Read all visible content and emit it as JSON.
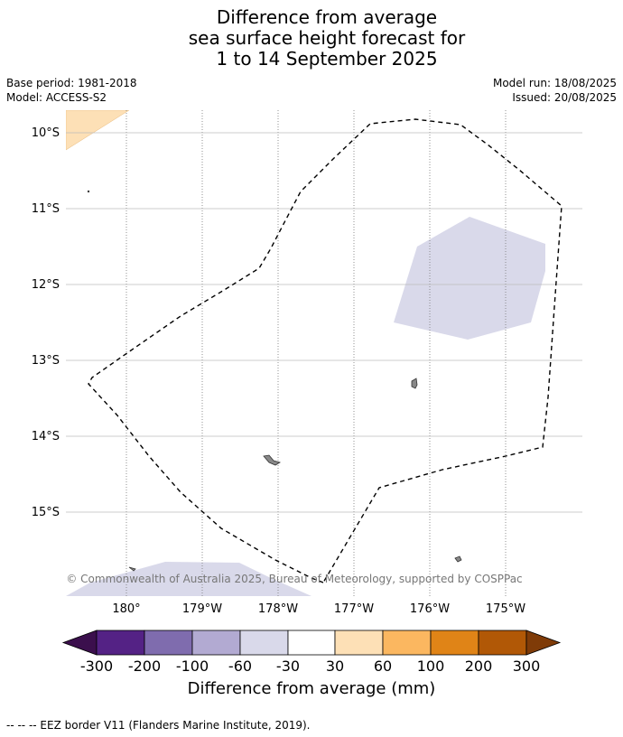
{
  "title": {
    "line1": "Difference from average",
    "line2": "sea surface height forecast for",
    "line3": "1 to 14 September 2025"
  },
  "info_left": {
    "base_period": "Base period: 1981-2018",
    "model": "Model: ACCESS-S2"
  },
  "info_right": {
    "model_run": "Model run: 18/08/2025",
    "issued": "Issued: 20/08/2025"
  },
  "map": {
    "lat_labels": [
      "10°S",
      "11°S",
      "12°S",
      "13°S",
      "14°S",
      "15°S"
    ],
    "lon_labels": [
      "180°",
      "179°W",
      "178°W",
      "177°W",
      "176°W",
      "175°W"
    ],
    "copyright": "© Commonwealth of Australia 2025, Bureau of Meteorology, supported by COSPPac",
    "colors": {
      "land": "#888888",
      "gridline": "#bbbbbb",
      "eez_border": "#000000"
    }
  },
  "colorbar": {
    "title": "Difference from average (mm)",
    "ticks": [
      "-300",
      "-200",
      "-100",
      "-60",
      "-30",
      "30",
      "60",
      "100",
      "200",
      "300"
    ],
    "colors": {
      "below": "#3b0f4d",
      "b1": "#542285",
      "b2": "#7f6cae",
      "b3": "#b2aad2",
      "b4": "#d9d9ea",
      "b5": "#ffffff",
      "b6": "#fde0b6",
      "b7": "#fbb760",
      "b8": "#e08417",
      "b9": "#b15806",
      "above": "#7f3b08"
    }
  },
  "footnote": "--  --  -- EEZ border V11 (Flanders Marine Institute, 2019)."
}
